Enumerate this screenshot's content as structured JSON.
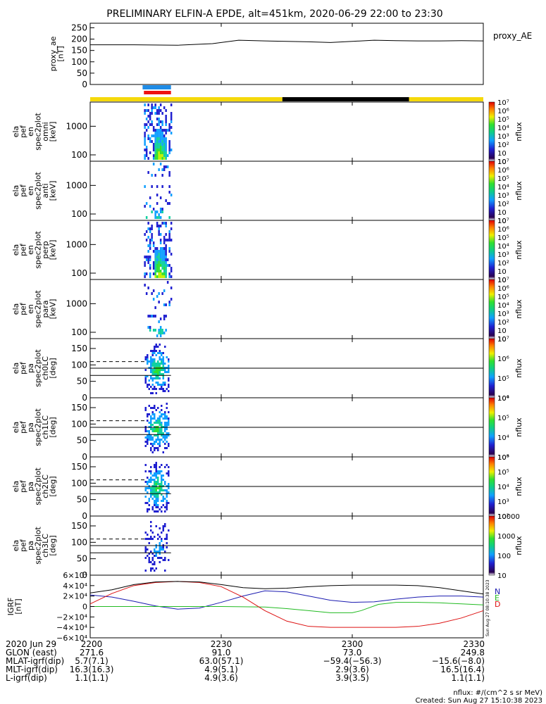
{
  "title": "PRELIMINARY ELFIN-A EPDE, alt=451km, 2020-06-29 22:00 to 23:30",
  "colors": {
    "state_yellow": "#f5d90a",
    "state_black": "#000000",
    "blue_bar": "#1f8ce6",
    "red_bar": "#ee1111",
    "grf_N": "#1a1ab0",
    "grf_E": "#22bb22",
    "grf_D": "#dd1111",
    "grf_total": "#000000"
  },
  "proxy_ae": {
    "ylabel": [
      "proxy_ae",
      "[nT]"
    ],
    "legend": "proxy_AE",
    "yticks": [
      "0",
      "50",
      "100",
      "150",
      "200",
      "250"
    ]
  },
  "energy_panels": [
    {
      "id": "omni",
      "ylabel": [
        "ela",
        "pef",
        "en",
        "spec2plot",
        "omni",
        "[keV]"
      ],
      "cbar_ticks": [
        "10",
        "10",
        "10²",
        "10³",
        "10⁴",
        "10⁵",
        "10⁶",
        "10⁷"
      ]
    },
    {
      "id": "anti",
      "ylabel": [
        "ela",
        "pef",
        "en",
        "spec2plot",
        "anti",
        "[keV]"
      ],
      "cbar_ticks": [
        "10",
        "10",
        "10²",
        "10³",
        "10⁴",
        "10⁵",
        "10⁶",
        "10⁷"
      ]
    },
    {
      "id": "perp",
      "ylabel": [
        "ela",
        "pef",
        "en",
        "spec2plot",
        "perp",
        "[keV]"
      ],
      "cbar_ticks": [
        "10",
        "10",
        "10²",
        "10³",
        "10⁴",
        "10⁵",
        "10⁶",
        "10⁷"
      ]
    },
    {
      "id": "para",
      "ylabel": [
        "ela",
        "pef",
        "en",
        "spec2plot",
        "para",
        "[keV]"
      ],
      "cbar_ticks": [
        "10",
        "10",
        "10²",
        "10³",
        "10⁴",
        "10⁵",
        "10⁶",
        "10⁷"
      ]
    }
  ],
  "energy_yticks": [
    "100",
    "1000"
  ],
  "pa_panels": [
    {
      "id": "ch0LC",
      "ylabel": [
        "ela",
        "pef",
        "pa",
        "spec2plot",
        "ch0LC",
        "[deg]"
      ],
      "cbar_ticks": [
        "10⁴",
        "10⁵",
        "10⁶",
        "10⁷"
      ]
    },
    {
      "id": "ch1LC",
      "ylabel": [
        "ela",
        "pef",
        "pa",
        "spec2plot",
        "ch1LC",
        "[deg]"
      ],
      "cbar_ticks": [
        "10³",
        "10⁴",
        "10⁵",
        "10⁶"
      ]
    },
    {
      "id": "ch2LC",
      "ylabel": [
        "ela",
        "pef",
        "pa",
        "spec2plot",
        "ch2LC",
        "[deg]"
      ],
      "cbar_ticks": [
        "10²",
        "10³",
        "10⁴",
        "10⁵",
        "10⁶"
      ]
    },
    {
      "id": "ch3LC",
      "ylabel": [
        "ela",
        "pef",
        "pa",
        "spec2plot",
        "ch3LC",
        "[deg]"
      ],
      "cbar_ticks": [
        "10",
        "100",
        "1000",
        "10000"
      ]
    }
  ],
  "pa_yticks": [
    "0",
    "50",
    "100",
    "150"
  ],
  "cbar_label": "nflux",
  "grf": {
    "ylabel": [
      "IGRF",
      "[nT]"
    ],
    "yticks": [
      "−6×10⁴",
      "−4×10⁴",
      "−2×10⁴",
      "0",
      "2×10⁴",
      "4×10⁴",
      "6×10⁴"
    ],
    "legend": [
      "N",
      "E",
      "D"
    ],
    "side_note": "Sun Aug 27 08:10:38 2023"
  },
  "xaxis": {
    "ticks": [
      "2200",
      "2230",
      "2300",
      "2330"
    ],
    "rows": [
      {
        "label": "2020 Jun 29",
        "values": [
          "2200",
          "2230",
          "2300",
          "2330"
        ]
      },
      {
        "label": "GLON (east)",
        "values": [
          "271.6",
          "91.0",
          "73.0",
          "249.8"
        ]
      },
      {
        "label": "MLAT-igrf(dip)",
        "values": [
          "5.7(7.1)",
          "63.0(57.1)",
          "−59.4(−56.3)",
          "−15.6(−8.0)"
        ]
      },
      {
        "label": "MLT-igrf(dip)",
        "values": [
          "16.3(16.3)",
          "4.9(5.1)",
          "2.9(3.6)",
          "16.5(16.4)"
        ]
      },
      {
        "label": "L-igrf(dip)",
        "values": [
          "1.1(1.1)",
          "4.9(3.6)",
          "3.9(3.5)",
          "1.1(1.1)"
        ]
      }
    ]
  },
  "footer": {
    "units": "nflux: #/(cm^2 s sr MeV)",
    "created": "Created: Sun Aug 27 15:10:38 2023"
  },
  "chart_data": {
    "type": "line",
    "title": "PRELIMINARY ELFIN-A EPDE, alt=451km, 2020-06-29 22:00 to 23:30",
    "x_range_minutes": [
      0,
      90
    ],
    "proxy_ae": {
      "x": [
        0,
        10,
        20,
        28,
        34,
        40,
        45,
        50,
        55,
        60,
        65,
        70,
        75,
        80,
        85,
        90
      ],
      "y": [
        175,
        175,
        173,
        180,
        195,
        192,
        190,
        188,
        185,
        190,
        195,
        193,
        192,
        192,
        193,
        192
      ],
      "ylim": [
        0,
        270
      ]
    },
    "state_bar": [
      {
        "start": 0,
        "end": 44,
        "color": "yellow"
      },
      {
        "start": 44,
        "end": 73,
        "color": "black"
      },
      {
        "start": 73,
        "end": 90,
        "color": "yellow"
      }
    ],
    "science_intervals": {
      "blue": [
        12,
        18.5
      ],
      "red": [
        12.3,
        18.5
      ]
    },
    "spectrogram_interval_minutes": [
      12,
      18.5
    ],
    "energy_ylim_keV": [
      60,
      7000
    ],
    "pa_ylim_deg": [
      0,
      180
    ],
    "pa_reference_lines_deg": {
      "dashed": 110,
      "solid_upper": 90,
      "solid_lower": 68
    },
    "igrf_ylim": [
      -60000,
      60000
    ],
    "igrf_series": [
      {
        "name": "N",
        "x": [
          0,
          5,
          10,
          15,
          20,
          25,
          30,
          35,
          40,
          45,
          50,
          55,
          60,
          65,
          70,
          75,
          80,
          85,
          90
        ],
        "y": [
          22000,
          18000,
          10000,
          1000,
          -5000,
          -3000,
          8000,
          20000,
          30000,
          28000,
          20000,
          12000,
          8000,
          9000,
          14000,
          18000,
          20000,
          20000,
          18000
        ]
      },
      {
        "name": "E",
        "x": [
          0,
          10,
          20,
          30,
          40,
          45,
          50,
          55,
          60,
          62,
          66,
          70,
          75,
          80,
          85,
          90
        ],
        "y": [
          0,
          0,
          0,
          0,
          -1000,
          -4000,
          -8000,
          -12000,
          -12000,
          -8000,
          4000,
          8000,
          8000,
          7000,
          5000,
          3000
        ]
      },
      {
        "name": "D",
        "x": [
          0,
          5,
          10,
          15,
          20,
          25,
          30,
          35,
          40,
          45,
          50,
          55,
          60,
          65,
          70,
          75,
          80,
          85,
          90
        ],
        "y": [
          5000,
          25000,
          40000,
          46000,
          48000,
          46000,
          38000,
          18000,
          -8000,
          -28000,
          -38000,
          -40000,
          -40000,
          -40000,
          -40000,
          -38000,
          -32000,
          -22000,
          -8000
        ]
      },
      {
        "name": "|B|",
        "x": [
          0,
          5,
          10,
          15,
          20,
          25,
          30,
          35,
          40,
          45,
          50,
          55,
          60,
          65,
          70,
          75,
          80,
          85,
          90
        ],
        "y": [
          26000,
          32000,
          42000,
          47000,
          48000,
          47000,
          42000,
          36000,
          34000,
          35000,
          38000,
          40000,
          41000,
          41000,
          41000,
          40000,
          36000,
          30000,
          24000
        ]
      }
    ]
  }
}
